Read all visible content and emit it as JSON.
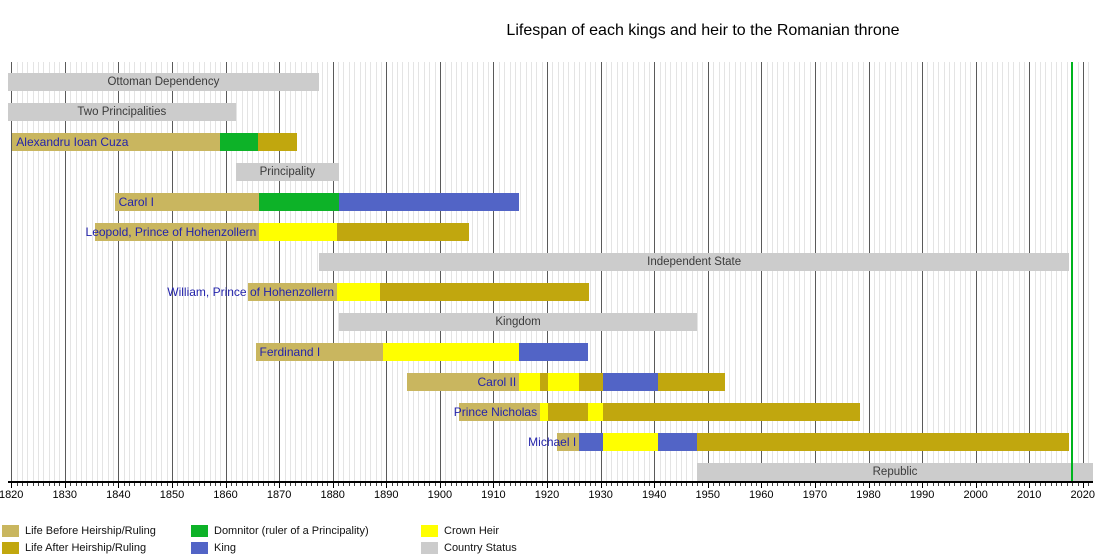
{
  "chart_data": {
    "type": "gantt-timeline",
    "title": "Lifespan of each kings and heir to the Romanian throne",
    "x_axis": {
      "min": 1819.4,
      "max": 2021.9,
      "minor_step": 1,
      "decade_ticks": [
        1820,
        1830,
        1840,
        1850,
        1860,
        1870,
        1880,
        1890,
        1900,
        1910,
        1920,
        1930,
        1940,
        1950,
        1960,
        1970,
        1980,
        1990,
        2000,
        2010,
        2020
      ]
    },
    "today_line": {
      "year": 2017.75,
      "color": "#00B41E"
    },
    "colors": {
      "life_before": "#C9B65F",
      "life_after": "#C1A70E",
      "domnitor": "#0DB228",
      "king": "#5264C6",
      "crown_heir": "#FFFF00",
      "country_status": "#CCCCCC"
    },
    "rows": [
      {
        "kind": "status",
        "label": "Ottoman Dependency",
        "segments": [
          {
            "from": 1819.4,
            "to": 1877.4,
            "color": "country_status"
          }
        ]
      },
      {
        "kind": "status",
        "label": "Two Principalities",
        "segments": [
          {
            "from": 1819.4,
            "to": 1861.9,
            "color": "country_status"
          }
        ]
      },
      {
        "kind": "person",
        "label": "Alexandru Ioan Cuza",
        "label_anchor": "start",
        "segments": [
          {
            "from": 1820.2,
            "to": 1859.0,
            "color": "life_before"
          },
          {
            "from": 1859.0,
            "to": 1866.1,
            "color": "domnitor"
          },
          {
            "from": 1866.1,
            "to": 1873.4,
            "color": "life_after"
          }
        ]
      },
      {
        "kind": "status",
        "label": "Principality",
        "segments": [
          {
            "from": 1861.9,
            "to": 1881.2,
            "color": "country_status"
          }
        ]
      },
      {
        "kind": "person",
        "label": "Carol I",
        "label_anchor": "start",
        "segments": [
          {
            "from": 1839.3,
            "to": 1866.3,
            "color": "life_before"
          },
          {
            "from": 1866.3,
            "to": 1881.2,
            "color": "domnitor"
          },
          {
            "from": 1881.2,
            "to": 1914.8,
            "color": "king"
          }
        ]
      },
      {
        "kind": "person",
        "label": "Leopold, Prince of Hohenzollern",
        "label_anchor": "heir",
        "segments": [
          {
            "from": 1835.7,
            "to": 1866.3,
            "color": "life_before"
          },
          {
            "from": 1866.3,
            "to": 1880.8,
            "color": "crown_heir"
          },
          {
            "from": 1880.8,
            "to": 1905.4,
            "color": "life_after"
          }
        ]
      },
      {
        "kind": "status",
        "label": "Independent State",
        "segments": [
          {
            "from": 1877.4,
            "to": 2017.5,
            "color": "country_status"
          }
        ]
      },
      {
        "kind": "person",
        "label": "William, Prince of Hohenzollern",
        "label_anchor": "heir",
        "segments": [
          {
            "from": 1864.2,
            "to": 1880.8,
            "color": "life_before"
          },
          {
            "from": 1880.8,
            "to": 1888.9,
            "color": "crown_heir"
          },
          {
            "from": 1888.9,
            "to": 1927.8,
            "color": "life_after"
          }
        ]
      },
      {
        "kind": "status",
        "label": "Kingdom",
        "segments": [
          {
            "from": 1881.2,
            "to": 1948.0,
            "color": "country_status"
          }
        ]
      },
      {
        "kind": "person",
        "label": "Ferdinand I",
        "label_anchor": "start",
        "segments": [
          {
            "from": 1865.6,
            "to": 1889.3,
            "color": "life_before"
          },
          {
            "from": 1889.3,
            "to": 1914.8,
            "color": "crown_heir"
          },
          {
            "from": 1914.8,
            "to": 1927.6,
            "color": "king"
          }
        ]
      },
      {
        "kind": "person",
        "label": "Carol II",
        "label_anchor": "heir",
        "segments": [
          {
            "from": 1893.8,
            "to": 1914.8,
            "color": "life_before"
          },
          {
            "from": 1914.8,
            "to": 1918.7,
            "color": "crown_heir"
          },
          {
            "from": 1918.7,
            "to": 1920.2,
            "color": "life_after"
          },
          {
            "from": 1920.2,
            "to": 1926.0,
            "color": "crown_heir"
          },
          {
            "from": 1926.0,
            "to": 1930.4,
            "color": "life_after"
          },
          {
            "from": 1930.4,
            "to": 1940.7,
            "color": "king"
          },
          {
            "from": 1940.7,
            "to": 1953.3,
            "color": "life_after"
          }
        ]
      },
      {
        "kind": "person",
        "label": "Prince Nicholas",
        "label_anchor": "heir",
        "segments": [
          {
            "from": 1903.6,
            "to": 1918.7,
            "color": "life_before"
          },
          {
            "from": 1918.7,
            "to": 1920.2,
            "color": "crown_heir"
          },
          {
            "from": 1920.2,
            "to": 1927.6,
            "color": "life_after"
          },
          {
            "from": 1927.6,
            "to": 1930.4,
            "color": "crown_heir"
          },
          {
            "from": 1930.4,
            "to": 1978.4,
            "color": "life_after"
          }
        ]
      },
      {
        "kind": "person",
        "label": "Michael I",
        "label_anchor": "heir",
        "segments": [
          {
            "from": 1921.8,
            "to": 1926.0,
            "color": "life_before"
          },
          {
            "from": 1926.0,
            "to": 1930.4,
            "color": "king"
          },
          {
            "from": 1930.4,
            "to": 1940.7,
            "color": "crown_heir"
          },
          {
            "from": 1940.7,
            "to": 1948.0,
            "color": "king"
          },
          {
            "from": 1948.0,
            "to": 2017.5,
            "color": "life_after"
          }
        ]
      },
      {
        "kind": "status",
        "label": "Republic",
        "segments": [
          {
            "from": 1948.0,
            "to": 2021.9,
            "color": "country_status"
          }
        ]
      }
    ]
  },
  "legend": {
    "columns": [
      [
        {
          "key": "life_before",
          "label": "Life Before Heirship/Ruling"
        },
        {
          "key": "life_after",
          "label": "Life After Heirship/Ruling"
        }
      ],
      [
        {
          "key": "domnitor",
          "label": "Domnitor (ruler of a Principality)"
        },
        {
          "key": "king",
          "label": "King"
        }
      ],
      [
        {
          "key": "crown_heir",
          "label": "Crown Heir"
        },
        {
          "key": "country_status",
          "label": "Country Status"
        }
      ]
    ]
  }
}
